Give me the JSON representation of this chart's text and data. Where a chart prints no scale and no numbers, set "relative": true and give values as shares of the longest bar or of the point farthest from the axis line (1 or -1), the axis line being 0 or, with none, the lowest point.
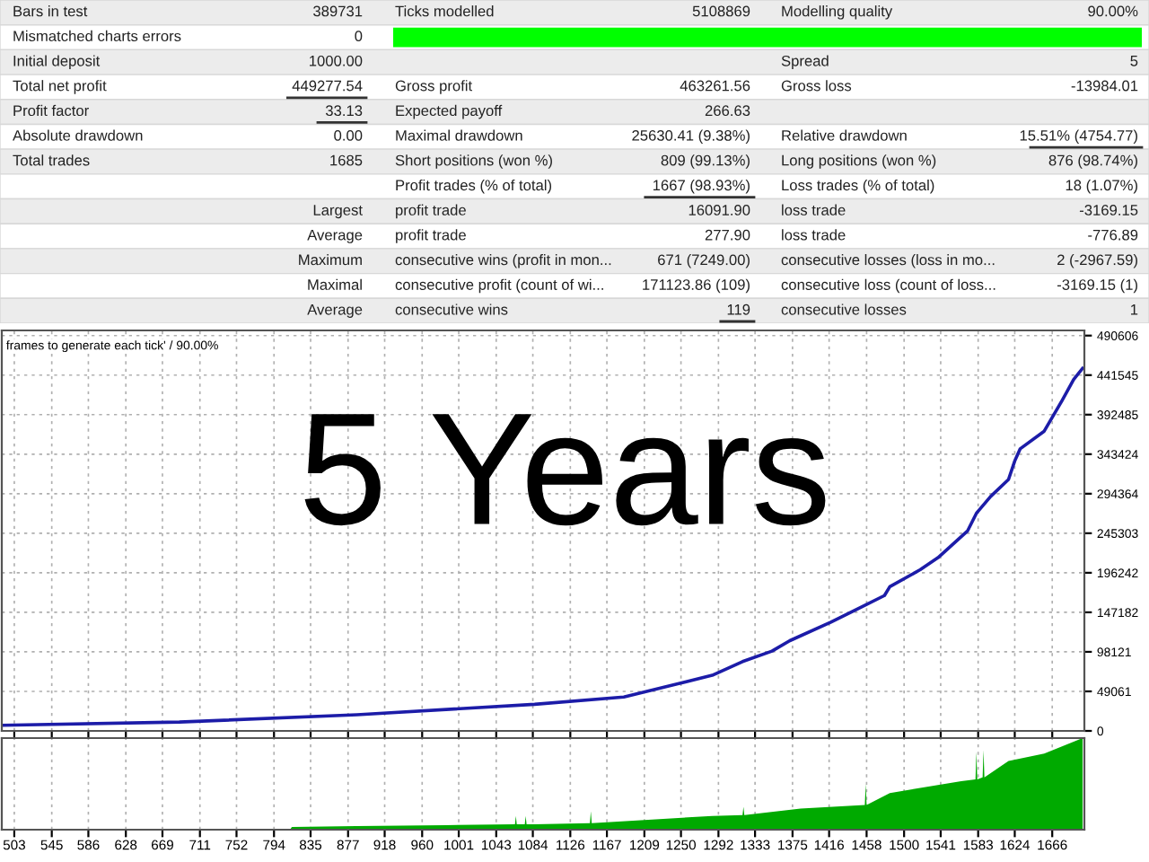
{
  "chart_data": [
    {
      "type": "other",
      "annotations": [
        "Bars in test",
        "389731",
        "Ticks modelled",
        "5108869",
        "Modelling quality",
        "90.00%",
        "Mismatched charts errors",
        "0",
        null,
        null,
        null,
        null,
        "Initial deposit",
        "1000.00",
        null,
        null,
        "Spread",
        "5",
        "Total net profit",
        "449277.54",
        "Gross profit",
        "463261.56",
        "Gross loss",
        "-13984.01",
        "Profit factor",
        "33.13",
        "Expected payoff",
        "266.63",
        null,
        null,
        "Absolute drawdown",
        "0.00",
        "Maximal drawdown",
        "25630.41 (9.38%)",
        "Relative drawdown",
        "15.51% (4754.77)",
        "Total trades",
        "1685",
        "Short positions (won %)",
        "809 (99.13%)",
        "Long positions (won %)",
        "876 (98.74%)",
        null,
        null,
        "Profit trades (% of total)",
        "1667 (98.93%)",
        "Loss trades (% of total)",
        "18 (1.07%)",
        null,
        "Largest",
        "profit trade",
        "16091.90",
        "loss trade",
        "-3169.15",
        null,
        "Average",
        "profit trade",
        "277.90",
        "loss trade",
        "-776.89",
        null,
        "Maximum",
        "consecutive wins (profit in mon...",
        "671 (7249.00)",
        "consecutive losses (loss in mo...",
        "2 (-2967.59)",
        null,
        "Maximal",
        "consecutive profit (count of wi...",
        "171123.86 (109)",
        "consecutive loss (count of loss...",
        "-3169.15 (1)",
        null,
        "Average",
        "consecutive wins",
        "119",
        "consecutive losses",
        "1"
      ]
    },
    {
      "type": "line",
      "annotations": [
        "frames to generate each tick' / 90.00%",
        "5 Years"
      ],
      "series": [
        {
          "color": "#1c1ca8",
          "x": [
            489,
            688,
            887,
            1086,
            1186,
            1285,
            1319,
            1352,
            1372,
            1418,
            1451,
            1478,
            1484,
            1518,
            1538,
            1571,
            1581,
            1597,
            1617,
            1624,
            1630,
            1657,
            1677,
            1690,
            1700
          ],
          "values": [
            7000,
            11000,
            20000,
            33000,
            42000,
            69000,
            86000,
            99000,
            112000,
            135000,
            153000,
            168000,
            179000,
            200000,
            215000,
            248000,
            270000,
            291000,
            312000,
            335000,
            350000,
            372000,
            410000,
            436000,
            450000
          ]
        }
      ],
      "xlim": [
        489,
        1702
      ],
      "xticks": [
        503,
        545,
        586,
        628,
        669,
        711,
        752,
        794,
        835,
        877,
        918,
        960,
        1001,
        1043,
        1084,
        1126,
        1167,
        1209,
        1250,
        1292,
        1333,
        1375,
        1416,
        1458,
        1500,
        1541,
        1583,
        1624,
        1666
      ],
      "ylim": [
        0,
        497000
      ],
      "yticks": [
        0,
        49061,
        98121,
        147182,
        196242,
        245303,
        294364,
        343424,
        392485,
        441545,
        490606
      ],
      "grid": true,
      "tick_labels": "y"
    },
    {
      "type": "area",
      "relative": true,
      "series": [
        {
          "color": "#00aa00",
          "x": [
            812,
            814,
            886,
            986,
            1064,
            1065,
            1066,
            1075,
            1076,
            1077,
            1086,
            1148,
            1149,
            1150,
            1285,
            1319,
            1320,
            1321,
            1384,
            1456,
            1457,
            1458,
            1484,
            1564,
            1580,
            1581,
            1582,
            1588,
            1589,
            1590,
            1617,
            1657,
            1700
          ],
          "values": [
            0,
            0.03,
            0.04,
            0.05,
            0.06,
            0.15,
            0.06,
            0.06,
            0.15,
            0.06,
            0.06,
            0.07,
            0.2,
            0.07,
            0.15,
            0.16,
            0.25,
            0.16,
            0.23,
            0.27,
            0.5,
            0.27,
            0.4,
            0.53,
            0.55,
            0.85,
            0.55,
            0.57,
            0.87,
            0.57,
            0.75,
            0.83,
            1
          ]
        }
      ],
      "xlim": [
        489,
        1702
      ],
      "xticks": [
        503,
        545,
        586,
        628,
        669,
        711,
        752,
        794,
        835,
        877,
        918,
        960,
        1001,
        1043,
        1084,
        1126,
        1167,
        1209,
        1250,
        1292,
        1333,
        1375,
        1416,
        1458,
        1500,
        1541,
        1583,
        1624,
        1666
      ],
      "grid": "x",
      "tick_labels": "x"
    }
  ]
}
